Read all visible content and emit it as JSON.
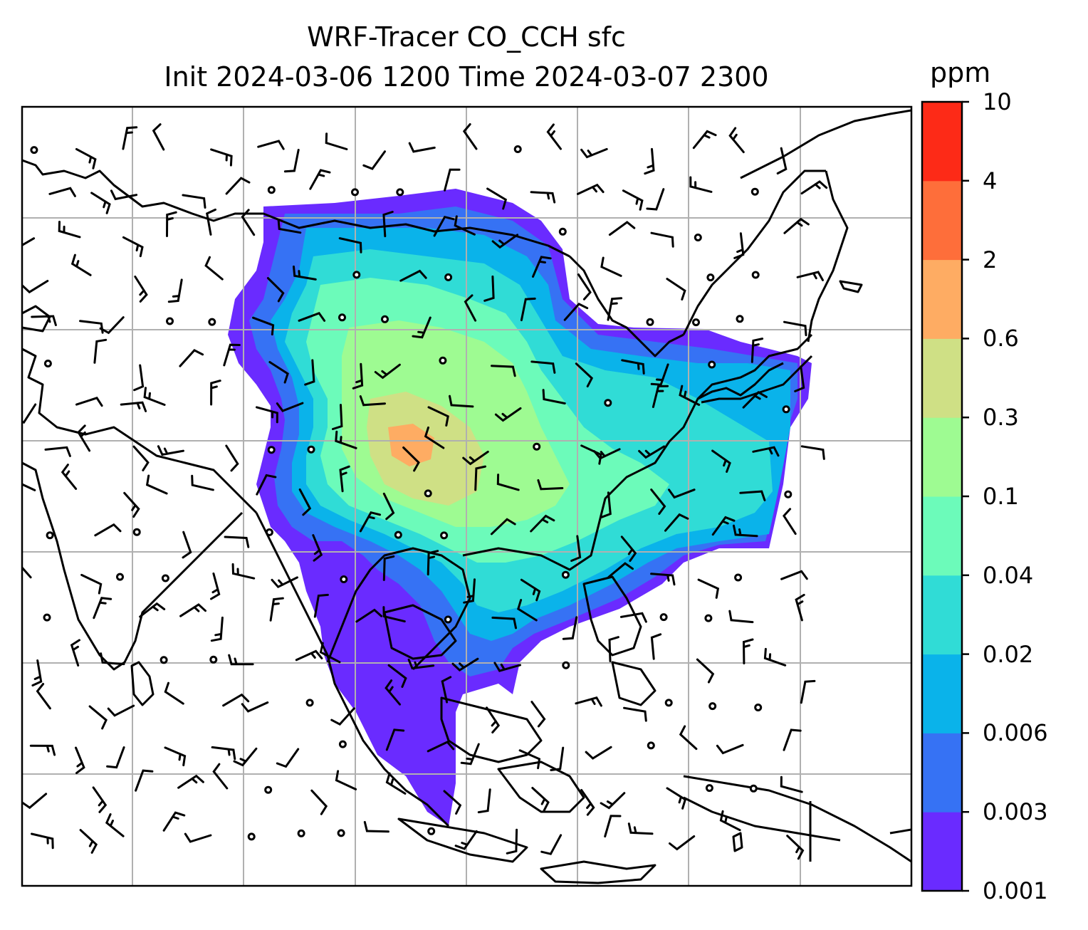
{
  "title": {
    "line1": "WRF-Tracer CO_CCH sfc",
    "line2": "Init 2024-03-06 1200 Time 2024-03-07 2300"
  },
  "colorbar": {
    "unit": "ppm",
    "levels": [
      "0.001",
      "0.003",
      "0.006",
      "0.02",
      "0.04",
      "0.1",
      "0.3",
      "0.6",
      "2",
      "4",
      "10"
    ],
    "colors": [
      "#6a2bff",
      "#3672f4",
      "#0ab3ea",
      "#30dcd6",
      "#6cfbba",
      "#9efb92",
      "#cfe085",
      "#feac63",
      "#fe6e3a",
      "#fd2a17"
    ]
  },
  "map": {
    "grid_color": "#b0b0b0",
    "coastline_color": "#000000",
    "barb_color": "#000000"
  }
}
